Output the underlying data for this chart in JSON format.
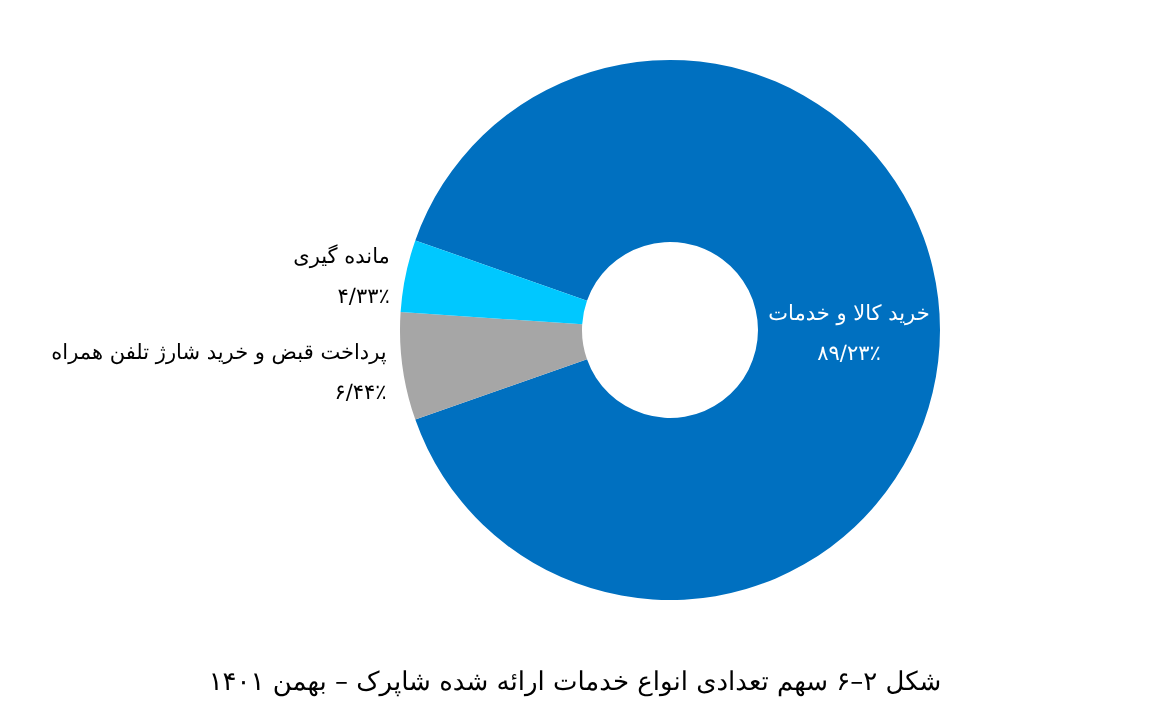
{
  "chart_data": {
    "type": "donut",
    "title": "شکل ۲–۶ سهم تعدادی انواع خدمات ارائه شده شاپرک – بهمن ۱۴۰۱",
    "categories": [
      "خرید کالا و خدمات",
      "پرداخت قبض و خرید شارژ تلفن همراه",
      "مانده گیری"
    ],
    "values": [
      89.23,
      6.44,
      4.33
    ],
    "colors": [
      "#0070c0",
      "#a6a6a6",
      "#00c8ff"
    ],
    "value_labels": [
      "۸۹/۲۳٪",
      "۶/۴۴٪",
      "۴/۳۳٪"
    ]
  }
}
